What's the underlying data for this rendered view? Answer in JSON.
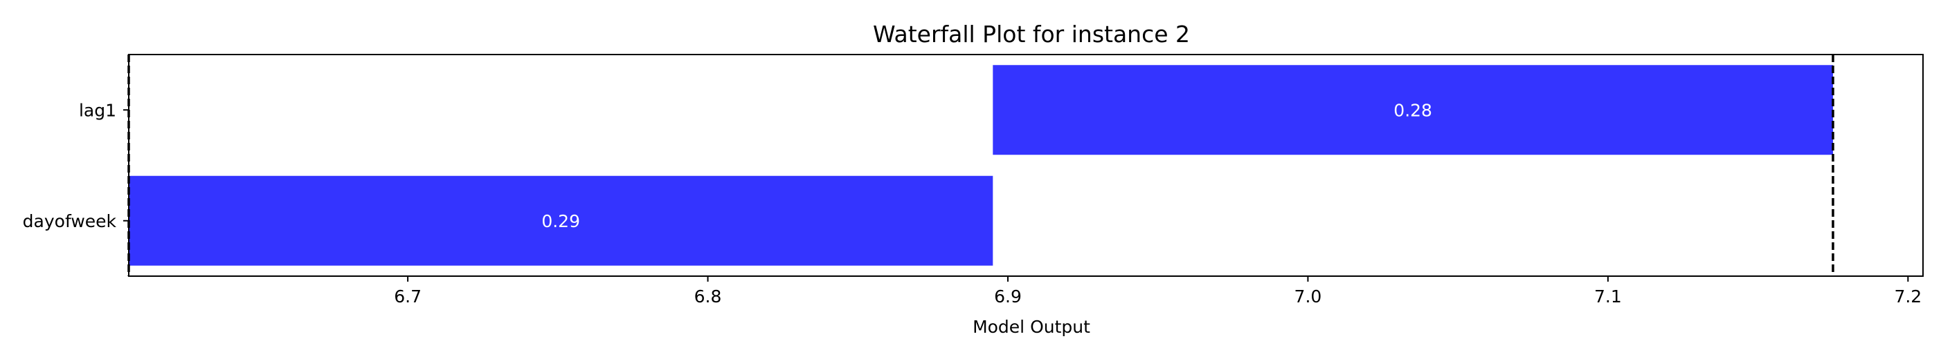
{
  "chart_data": {
    "type": "bar",
    "orientation": "horizontal",
    "subtype": "waterfall",
    "title": "Waterfall Plot for instance 2",
    "xlabel": "Model Output",
    "ylabel": "",
    "xlim": [
      6.607,
      7.205
    ],
    "xticks": [
      "6.7",
      "6.8",
      "6.9",
      "7.0",
      "7.1",
      "7.2"
    ],
    "categories": [
      "lag1",
      "dayofweek"
    ],
    "bars": [
      {
        "feature": "lag1",
        "start": 6.895,
        "end": 7.175,
        "label": "0.28"
      },
      {
        "feature": "dayofweek",
        "start": 6.607,
        "end": 6.895,
        "label": "0.29"
      }
    ],
    "reference_lines": [
      6.607,
      7.175
    ],
    "bar_color": "#3434ff",
    "reference_line_color": "#000000",
    "grid": false,
    "legend": "none"
  }
}
